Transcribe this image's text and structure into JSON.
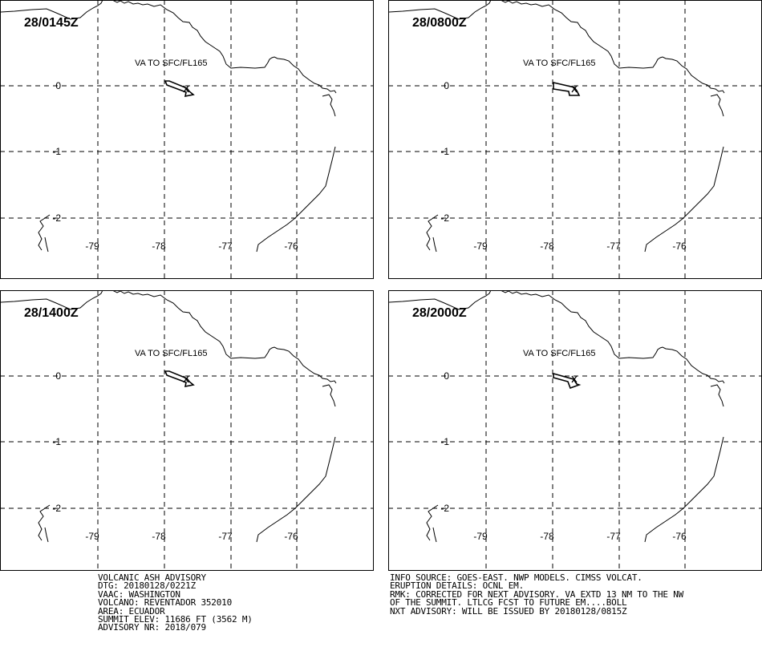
{
  "panels": [
    {
      "time": "28/0145Z",
      "va_label": "VA TO SFC/FL165",
      "plume": "p1"
    },
    {
      "time": "28/0800Z",
      "va_label": "VA TO SFC/FL165",
      "plume": "p2"
    },
    {
      "time": "28/1400Z",
      "va_label": "VA TO SFC/FL165",
      "plume": "p1"
    },
    {
      "time": "28/2000Z",
      "va_label": "VA TO SFC/FL165",
      "plume": "p3"
    }
  ],
  "lon_labels": [
    "-79",
    "-78",
    "-77",
    "-76"
  ],
  "lat_labels": [
    "0",
    "-1",
    "-2"
  ],
  "advisory_left": [
    "VOLCANIC ASH ADVISORY",
    "DTG: 20180128/0221Z",
    "VAAC: WASHINGTON",
    "VOLCANO: REVENTADOR 352010",
    "AREA: ECUADOR",
    "SUMMIT ELEV: 11686 FT (3562 M)",
    "ADVISORY NR: 2018/079"
  ],
  "advisory_right": [
    "INFO SOURCE: GOES-EAST. NWP MODELS. CIMSS VOLCAT.",
    "ERUPTION DETAILS: OCNL EM.",
    "RMK: CORRECTED FOR NEXT ADVISORY. VA EXTD 13 NM TO THE NW",
    "OF THE SUMMIT. LTLCG FCST TO FUTURE EM....BOLL",
    "NXT ADVISORY: WILL BE ISSUED BY 20180128/0815Z"
  ]
}
